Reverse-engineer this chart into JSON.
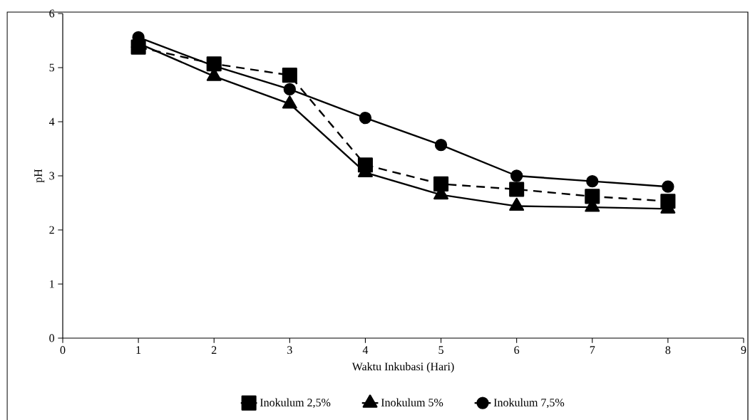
{
  "chart_data": {
    "type": "line",
    "xlabel": "Waktu Inkubasi (Hari)",
    "ylabel": "pH",
    "x": [
      1,
      2,
      3,
      4,
      5,
      6,
      7,
      8
    ],
    "series": [
      {
        "name": "Inokulum 2,5%",
        "color": "#000000",
        "marker": "square",
        "line_style": "dashed",
        "values": [
          5.38,
          5.07,
          4.86,
          3.2,
          2.85,
          2.75,
          2.62,
          2.53
        ]
      },
      {
        "name": "Inokulum 5%",
        "color": "#000000",
        "marker": "triangle",
        "line_style": "solid",
        "values": [
          5.45,
          4.84,
          4.33,
          3.06,
          2.65,
          2.44,
          2.42,
          2.39
        ]
      },
      {
        "name": "Inokulum 7,5%",
        "color": "#000000",
        "marker": "circle",
        "line_style": "solid",
        "values": [
          5.56,
          5.03,
          4.6,
          4.07,
          3.57,
          3.0,
          2.9,
          2.8
        ]
      }
    ],
    "xlim": [
      0,
      9
    ],
    "xticks": [
      0,
      1,
      2,
      3,
      4,
      5,
      6,
      7,
      8,
      9
    ],
    "ylim": [
      0,
      6
    ],
    "yticks": [
      0,
      1,
      2,
      3,
      4,
      5,
      6
    ],
    "grid": false,
    "legend": "bottom"
  }
}
